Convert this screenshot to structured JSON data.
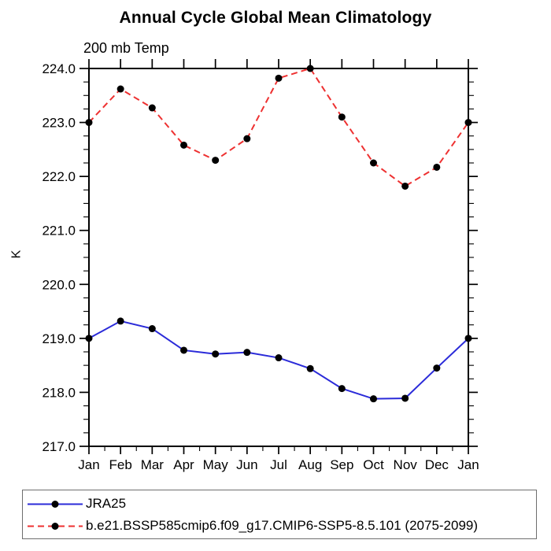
{
  "chart_data": {
    "type": "line",
    "title": "Annual Cycle Global Mean Climatology",
    "subtitle": "200 mb Temp",
    "xlabel": "",
    "ylabel": "K",
    "categories": [
      "Jan",
      "Feb",
      "Mar",
      "Apr",
      "May",
      "Jun",
      "Jul",
      "Aug",
      "Sep",
      "Oct",
      "Nov",
      "Dec",
      "Jan"
    ],
    "ylim": [
      217.0,
      224.0
    ],
    "y_major_step": 1.0,
    "y_minor_step": 0.25,
    "y_tick_labels": [
      "217.0",
      "218.0",
      "219.0",
      "220.0",
      "221.0",
      "222.0",
      "223.0",
      "224.0"
    ],
    "grid": false,
    "legend_position": "bottom-left-box",
    "axis_color": "#000000",
    "series": [
      {
        "name": "JRA25",
        "line_style": "solid",
        "color": "#2b2bd9",
        "marker": "filled-circle",
        "marker_color": "#000000",
        "values": [
          219.0,
          219.32,
          219.18,
          218.78,
          218.71,
          218.74,
          218.64,
          218.44,
          218.07,
          217.88,
          217.89,
          218.45,
          219.0
        ]
      },
      {
        "name": "b.e21.BSSP585cmip6.f09_g17.CMIP6-SSP5-8.5.101 (2075-2099)",
        "line_style": "dashed",
        "color": "#ee3131",
        "marker": "filled-circle",
        "marker_color": "#000000",
        "values": [
          223.0,
          223.62,
          223.27,
          222.58,
          222.3,
          222.7,
          223.82,
          224.0,
          223.1,
          222.25,
          221.82,
          222.17,
          223.0
        ]
      }
    ]
  },
  "legend": {
    "items": [
      {
        "label": "JRA25",
        "color": "#2b2bd9",
        "style": "solid"
      },
      {
        "label": "b.e21.BSSP585cmip6.f09_g17.CMIP6-SSP5-8.5.101 (2075-2099)",
        "color": "#ee3131",
        "style": "dashed"
      }
    ]
  }
}
